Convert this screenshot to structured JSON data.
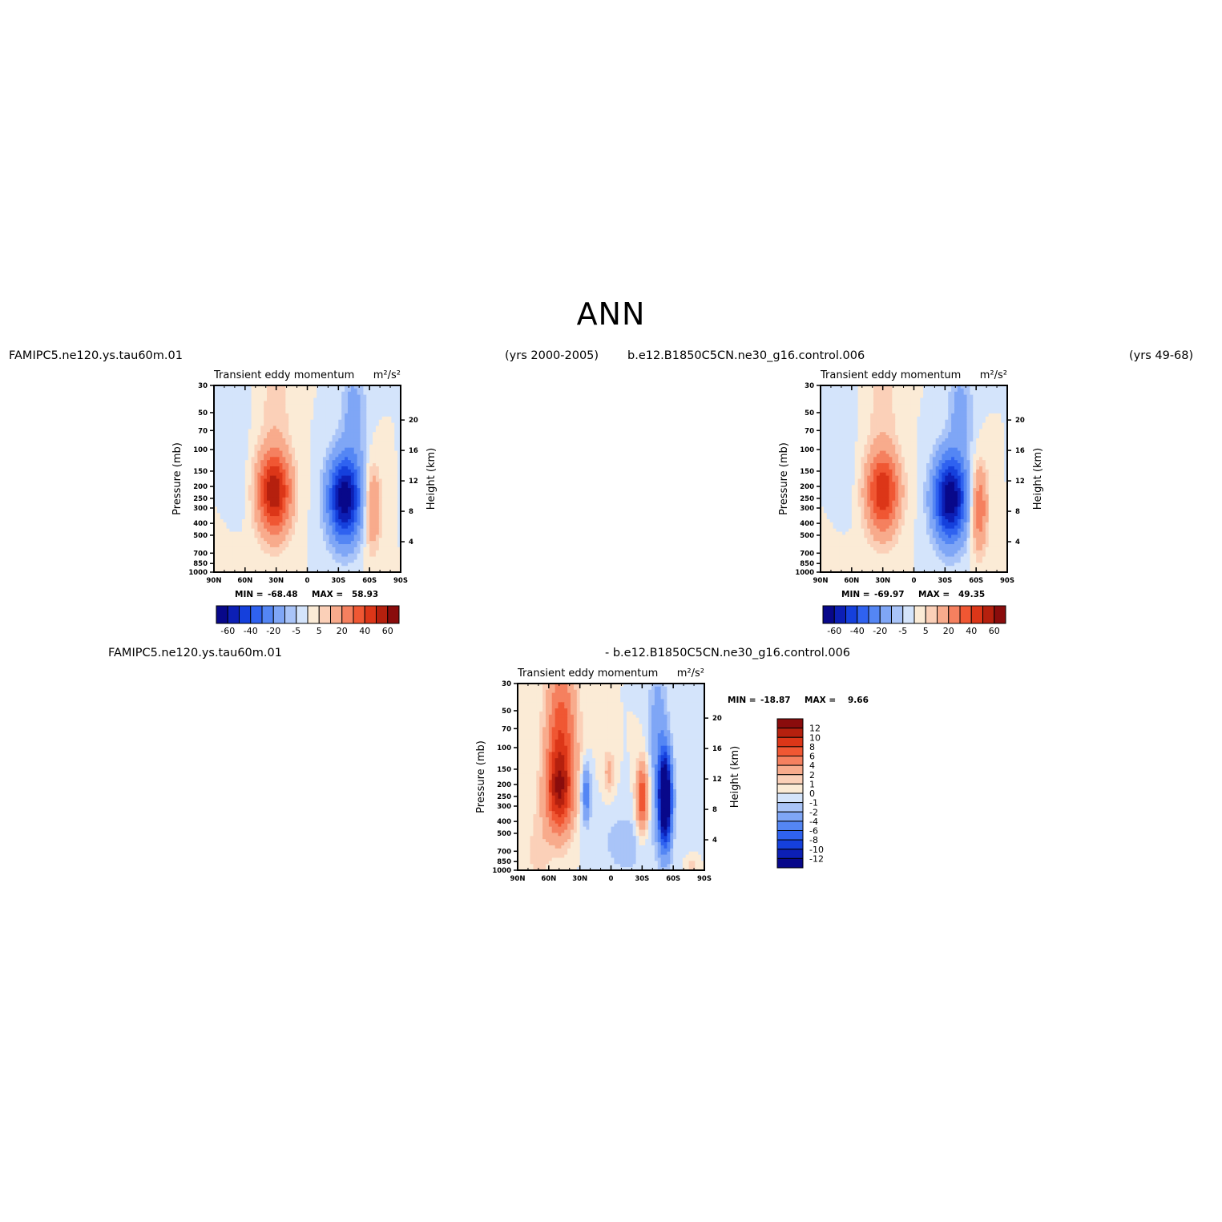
{
  "page_title": "ANN",
  "headers": {
    "top_left_case": "FAMIPC5.ne120.ys.tau60m.01",
    "top_left_years": "(yrs 2000-2005)",
    "top_right_case": "b.e12.B1850C5CN.ne30_g16.control.006",
    "top_right_years": "(yrs 49-68)",
    "bottom_case_a": "FAMIPC5.ne120.ys.tau60m.01",
    "bottom_case_b": "- b.e12.B1850C5CN.ne30_g16.control.006"
  },
  "colors": {
    "blue_red": [
      "#08088a",
      "#0c1fb5",
      "#1540dc",
      "#2f62f0",
      "#5486f4",
      "#7fa6f6",
      "#a9c4f8",
      "#d4e4fb",
      "#fbebd6",
      "#fbd0b8",
      "#f8ab8c",
      "#f5805f",
      "#f05733",
      "#dc3618",
      "#b5200e",
      "#8a0c0c"
    ]
  },
  "chart_data": [
    {
      "id": "model",
      "type": "heatmap",
      "title": "Transient eddy momentum",
      "units": "m²/s²",
      "xlabel": "",
      "ylabel": "Pressure (mb)",
      "ylabel_right": "Height (km)",
      "x_ticks": [
        "90N",
        "60N",
        "30N",
        "0",
        "30S",
        "60S",
        "90S"
      ],
      "y_ticks": [
        30,
        50,
        70,
        100,
        150,
        200,
        250,
        300,
        400,
        500,
        700,
        850,
        1000
      ],
      "y_right_ticks": [
        20,
        16,
        12,
        8,
        4
      ],
      "ylim": [
        1000,
        30
      ],
      "y_scale": "log",
      "stats": {
        "min_label": "MIN =",
        "min": "-68.48",
        "max_label": "MAX =",
        "max": "58.93"
      },
      "contour_levels": [
        -70,
        -60,
        -50,
        -40,
        -30,
        -20,
        -10,
        -5,
        0,
        5,
        10,
        20,
        30,
        40,
        50,
        60,
        70
      ],
      "colorbar_labels": [
        "-60",
        "-40",
        "-20",
        "-5",
        "5",
        "20",
        "40",
        "60"
      ],
      "colorbar_orientation": "horizontal",
      "features": [
        {
          "lat": 32,
          "p": 220,
          "value": 58.93,
          "sign": "positive"
        },
        {
          "lat": -36,
          "p": 250,
          "value": -68.48,
          "sign": "negative"
        },
        {
          "lat": -63,
          "p": 300,
          "value": 22,
          "sign": "positive"
        }
      ]
    },
    {
      "id": "control",
      "type": "heatmap",
      "title": "Transient eddy momentum",
      "units": "m²/s²",
      "xlabel": "",
      "ylabel": "Pressure (mb)",
      "ylabel_right": "Height (km)",
      "x_ticks": [
        "90N",
        "60N",
        "30N",
        "0",
        "30S",
        "60S",
        "90S"
      ],
      "y_ticks": [
        30,
        50,
        70,
        100,
        150,
        200,
        250,
        300,
        400,
        500,
        700,
        850,
        1000
      ],
      "y_right_ticks": [
        20,
        16,
        12,
        8,
        4
      ],
      "ylim": [
        1000,
        30
      ],
      "y_scale": "log",
      "stats": {
        "min_label": "MIN =",
        "min": "-69.97",
        "max_label": "MAX =",
        "max": "49.35"
      },
      "contour_levels": [
        -70,
        -60,
        -50,
        -40,
        -30,
        -20,
        -10,
        -5,
        0,
        5,
        10,
        20,
        30,
        40,
        50,
        60,
        70
      ],
      "colorbar_labels": [
        "-60",
        "-40",
        "-20",
        "-5",
        "5",
        "20",
        "40",
        "60"
      ],
      "colorbar_orientation": "horizontal",
      "features": [
        {
          "lat": 30,
          "p": 220,
          "value": 49.35,
          "sign": "positive"
        },
        {
          "lat": -35,
          "p": 250,
          "value": -69.97,
          "sign": "negative"
        },
        {
          "lat": -63,
          "p": 300,
          "value": 30,
          "sign": "positive"
        }
      ]
    },
    {
      "id": "difference",
      "type": "heatmap",
      "title": "Transient eddy momentum",
      "units": "m²/s²",
      "xlabel": "",
      "ylabel": "Pressure (mb)",
      "ylabel_right": "Height (km)",
      "x_ticks": [
        "90N",
        "60N",
        "30N",
        "0",
        "30S",
        "60S",
        "90S"
      ],
      "y_ticks": [
        30,
        50,
        70,
        100,
        150,
        200,
        250,
        300,
        400,
        500,
        700,
        850,
        1000
      ],
      "y_right_ticks": [
        20,
        16,
        12,
        8,
        4
      ],
      "ylim": [
        1000,
        30
      ],
      "y_scale": "log",
      "stats": {
        "min_label": "MIN =",
        "min": "-18.87",
        "max_label": "MAX =",
        "max": "9.66"
      },
      "contour_levels": [
        -14,
        -12,
        -10,
        -8,
        -6,
        -4,
        -2,
        -1,
        0,
        1,
        2,
        4,
        6,
        8,
        10,
        12,
        14
      ],
      "colorbar_labels": [
        "12",
        "10",
        "8",
        "6",
        "4",
        "2",
        "1",
        "0",
        "-1",
        "-2",
        "-4",
        "-6",
        "-8",
        "-10",
        "-12"
      ],
      "colorbar_orientation": "vertical",
      "features": [
        {
          "lat": 50,
          "p": 230,
          "value": 9.66,
          "sign": "positive"
        },
        {
          "lat": 24,
          "p": 230,
          "value": -5,
          "sign": "negative"
        },
        {
          "lat": -30,
          "p": 250,
          "value": 8,
          "sign": "positive"
        },
        {
          "lat": -52,
          "p": 250,
          "value": -18.87,
          "sign": "negative"
        }
      ]
    }
  ]
}
